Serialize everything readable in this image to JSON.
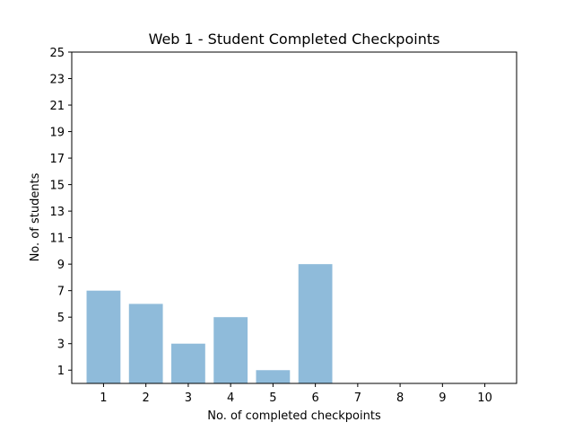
{
  "chart_data": {
    "type": "bar",
    "title": "Web 1 - Student Completed Checkpoints",
    "xlabel": "No. of completed checkpoints",
    "ylabel": "No. of students",
    "categories": [
      "1",
      "2",
      "3",
      "4",
      "5",
      "6",
      "7",
      "8",
      "9",
      "10"
    ],
    "values": [
      7,
      6,
      3,
      5,
      1,
      9,
      0,
      0,
      0,
      0
    ],
    "yticks": [
      1,
      3,
      5,
      7,
      9,
      11,
      13,
      15,
      17,
      19,
      21,
      23,
      25
    ],
    "ylim": [
      0,
      25
    ],
    "bar_color": "#8fbbda",
    "grid": false,
    "legend": "none"
  }
}
